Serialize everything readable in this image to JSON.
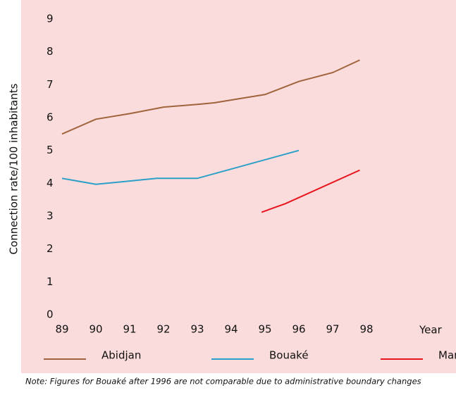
{
  "chart_data": {
    "type": "line",
    "y_label": "Connection rate/100 inhabitants",
    "x_label": "Year",
    "note": "Note: Figures for Bouaké after 1996 are not comparable due to administrative boundary changes",
    "xlim": [
      89,
      100.5
    ],
    "xticks": [
      89,
      90,
      91,
      92,
      93,
      94,
      95,
      96,
      97,
      98
    ],
    "ylim": [
      0,
      9
    ],
    "yticks": [
      0,
      1,
      2,
      3,
      4,
      5,
      6,
      7,
      8,
      9
    ],
    "grid": false,
    "series": [
      {
        "name": "Abidjan",
        "color": "#a0643c",
        "x": [
          89,
          90,
          91,
          92,
          93,
          93.5,
          94.5,
          95,
          96,
          97,
          97.8
        ],
        "values": [
          5.5,
          5.95,
          6.12,
          6.32,
          6.4,
          6.45,
          6.62,
          6.7,
          7.1,
          7.37,
          7.75
        ]
      },
      {
        "name": "Bouaké",
        "color": "#2aa0c8",
        "x": [
          89,
          90,
          91,
          91.8,
          93,
          96
        ],
        "values": [
          4.15,
          3.97,
          4.07,
          4.15,
          4.15,
          5.0
        ]
      },
      {
        "name": "Man",
        "color": "#e8141e",
        "x": [
          94.9,
          95.6,
          97.8
        ],
        "values": [
          3.12,
          3.38,
          4.4
        ]
      }
    ]
  }
}
